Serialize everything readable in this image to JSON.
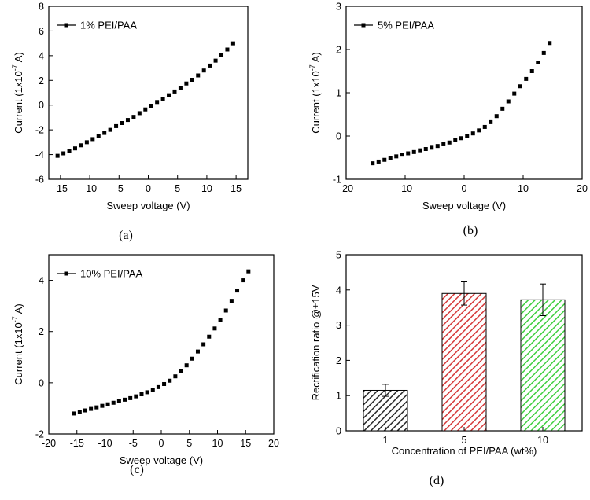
{
  "chart_data": [
    {
      "type": "scatter",
      "caption": "(a)",
      "xlabel": "Sweep voltage (V)",
      "ylabel": "Current (1x10",
      "ylabel_sup": "-7",
      "ylabel_end": " A)",
      "xlim": [
        -17,
        17
      ],
      "ylim": [
        -6,
        8
      ],
      "xticks": [
        -15,
        -10,
        -5,
        0,
        5,
        10,
        15
      ],
      "yticks": [
        -6,
        -4,
        -2,
        0,
        2,
        4,
        6,
        8
      ],
      "legend_position": "top-left",
      "series": [
        {
          "name": "1% PEI/PAA",
          "x": [
            -15.5,
            -14.5,
            -13.5,
            -12.5,
            -11.5,
            -10.5,
            -9.5,
            -8.5,
            -7.5,
            -6.5,
            -5.5,
            -4.5,
            -3.5,
            -2.5,
            -1.5,
            -0.5,
            0.5,
            1.5,
            2.5,
            3.5,
            4.5,
            5.5,
            6.5,
            7.5,
            8.5,
            9.5,
            10.5,
            11.5,
            12.5,
            13.5,
            14.5
          ],
          "y": [
            -4.1,
            -3.9,
            -3.7,
            -3.5,
            -3.25,
            -3.0,
            -2.75,
            -2.5,
            -2.25,
            -2.0,
            -1.7,
            -1.45,
            -1.2,
            -0.95,
            -0.65,
            -0.35,
            -0.05,
            0.25,
            0.5,
            0.8,
            1.1,
            1.4,
            1.75,
            2.05,
            2.4,
            2.8,
            3.2,
            3.6,
            4.05,
            4.5,
            5.0
          ]
        }
      ]
    },
    {
      "type": "scatter",
      "caption": "(b)",
      "xlabel": "Sweep voltage (V)",
      "ylabel": "Current (1x10",
      "ylabel_sup": "-7",
      "ylabel_end": " A)",
      "xlim": [
        -20,
        20
      ],
      "ylim": [
        -1,
        3
      ],
      "xticks": [
        -20,
        -10,
        0,
        10,
        20
      ],
      "yticks": [
        -1,
        0,
        1,
        2,
        3
      ],
      "legend_position": "top-left",
      "series": [
        {
          "name": "5% PEI/PAA",
          "x": [
            -15.5,
            -14.5,
            -13.5,
            -12.5,
            -11.5,
            -10.5,
            -9.5,
            -8.5,
            -7.5,
            -6.5,
            -5.5,
            -4.5,
            -3.5,
            -2.5,
            -1.5,
            -0.5,
            0.5,
            1.5,
            2.5,
            3.5,
            4.5,
            5.5,
            6.5,
            7.5,
            8.5,
            9.5,
            10.5,
            11.5,
            12.5,
            13.5,
            14.5
          ],
          "y": [
            -0.63,
            -0.59,
            -0.55,
            -0.51,
            -0.47,
            -0.43,
            -0.4,
            -0.37,
            -0.33,
            -0.3,
            -0.27,
            -0.23,
            -0.19,
            -0.15,
            -0.1,
            -0.05,
            0.0,
            0.06,
            0.13,
            0.21,
            0.32,
            0.46,
            0.63,
            0.8,
            0.98,
            1.15,
            1.32,
            1.5,
            1.7,
            1.92,
            2.15
          ]
        }
      ]
    },
    {
      "type": "scatter",
      "caption": "(c)",
      "xlabel": "Sweep voltage (V)",
      "ylabel": "Current (1x10",
      "ylabel_sup": "-7",
      "ylabel_end": " A)",
      "xlim": [
        -20,
        20
      ],
      "ylim": [
        -2,
        5
      ],
      "xticks": [
        -20,
        -15,
        -10,
        -5,
        0,
        5,
        10,
        15,
        20
      ],
      "yticks": [
        -2,
        0,
        2,
        4
      ],
      "legend_position": "top-left",
      "series": [
        {
          "name": "10% PEI/PAA",
          "x": [
            -15.5,
            -14.5,
            -13.5,
            -12.5,
            -11.5,
            -10.5,
            -9.5,
            -8.5,
            -7.5,
            -6.5,
            -5.5,
            -4.5,
            -3.5,
            -2.5,
            -1.5,
            -0.5,
            0.5,
            1.5,
            2.5,
            3.5,
            4.5,
            5.5,
            6.5,
            7.5,
            8.5,
            9.5,
            10.5,
            11.5,
            12.5,
            13.5,
            14.5,
            15.5
          ],
          "y": [
            -1.2,
            -1.15,
            -1.08,
            -1.02,
            -0.96,
            -0.9,
            -0.84,
            -0.78,
            -0.72,
            -0.66,
            -0.6,
            -0.53,
            -0.45,
            -0.37,
            -0.28,
            -0.17,
            -0.05,
            0.08,
            0.25,
            0.45,
            0.68,
            0.94,
            1.22,
            1.5,
            1.8,
            2.12,
            2.45,
            2.82,
            3.2,
            3.6,
            4.0,
            4.35
          ]
        }
      ]
    },
    {
      "type": "bar",
      "caption": "(d)",
      "xlabel": "Concentration  of PEI/PAA (wt%)",
      "ylabel": "Rectification ratio @±15V",
      "ylim": [
        0,
        5
      ],
      "yticks": [
        0,
        1,
        2,
        3,
        4,
        5
      ],
      "categories": [
        "1",
        "5",
        "10"
      ],
      "values": [
        1.15,
        3.9,
        3.72
      ],
      "errors": [
        0.17,
        0.33,
        0.45
      ],
      "colors": [
        "#2a2a2a",
        "#d63a3a",
        "#3fcf3f"
      ]
    }
  ]
}
